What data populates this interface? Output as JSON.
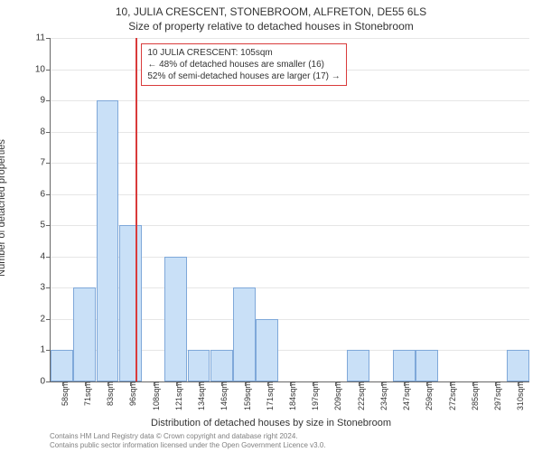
{
  "title_line1": "10, JULIA CRESCENT, STONEBROOM, ALFRETON, DE55 6LS",
  "title_line2": "Size of property relative to detached houses in Stonebroom",
  "ylabel": "Number of detached properties",
  "xlabel": "Distribution of detached houses by size in Stonebroom",
  "footer_line1": "Contains HM Land Registry data © Crown copyright and database right 2024.",
  "footer_line2": "Contains public sector information licensed under the Open Government Licence v3.0.",
  "annotation": {
    "line1": "10 JULIA CRESCENT: 105sqm",
    "line2": "← 48% of detached houses are smaller (16)",
    "line3": "52% of semi-detached houses are larger (17) →",
    "border_color": "#d93b3b",
    "text_color": "#333333",
    "font_size": 10
  },
  "chart": {
    "type": "histogram",
    "ylim": [
      0,
      11
    ],
    "ytick_step": 1,
    "x_categories": [
      "58sqm",
      "71sqm",
      "83sqm",
      "96sqm",
      "108sqm",
      "121sqm",
      "134sqm",
      "146sqm",
      "159sqm",
      "171sqm",
      "184sqm",
      "197sqm",
      "209sqm",
      "222sqm",
      "234sqm",
      "247sqm",
      "259sqm",
      "272sqm",
      "285sqm",
      "297sqm",
      "310sqm"
    ],
    "values": [
      1,
      3,
      9,
      5,
      0,
      4,
      1,
      1,
      3,
      2,
      0,
      0,
      0,
      1,
      0,
      1,
      1,
      0,
      0,
      0,
      1
    ],
    "bar_fill": "#c9e0f7",
    "bar_stroke": "#7fa8d9",
    "grid_color": "#e6e6e6",
    "axis_color": "#666666",
    "background": "#ffffff",
    "reference_line": {
      "x_position": 105,
      "x_min": 58,
      "x_max": 322,
      "color": "#d93b3b",
      "width": 2
    },
    "tick_font_size": 10,
    "label_font_size": 11,
    "title_font_size": 12
  }
}
